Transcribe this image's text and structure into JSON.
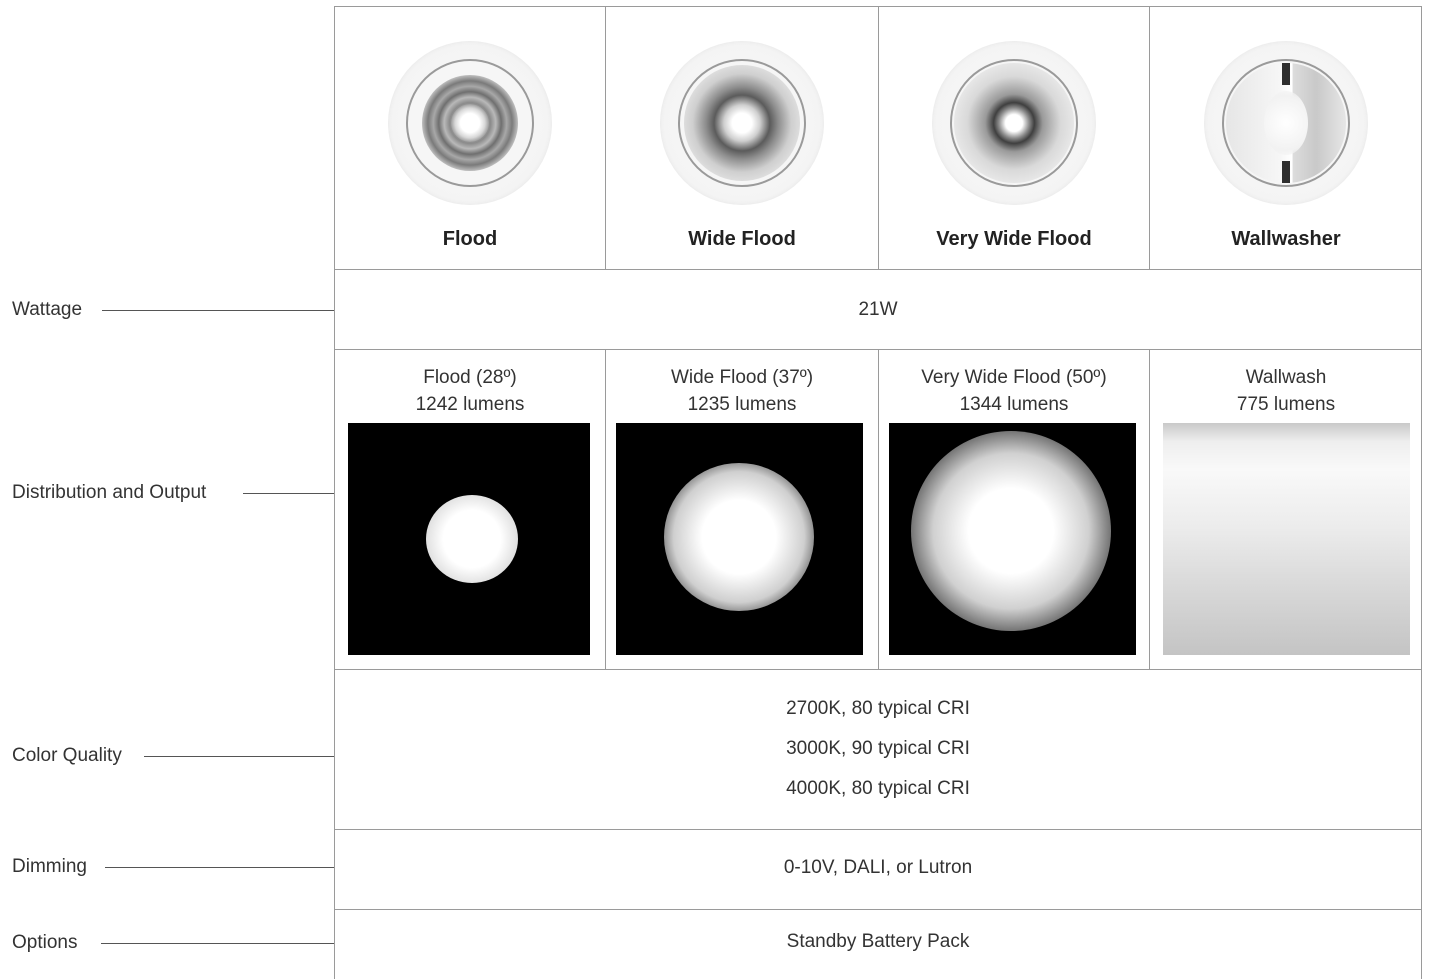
{
  "row_labels": {
    "wattage": "Wattage",
    "distribution": "Distribution and Output",
    "color_quality": "Color Quality",
    "dimming": "Dimming",
    "options": "Options"
  },
  "types": [
    {
      "name": "Flood"
    },
    {
      "name": "Wide Flood"
    },
    {
      "name": "Very Wide Flood"
    },
    {
      "name": "Wallwasher"
    }
  ],
  "wattage": "21W",
  "distributions": [
    {
      "line1": "Flood (28º)",
      "line2": "1242 lumens"
    },
    {
      "line1": "Wide Flood (37º)",
      "line2": "1235 lumens"
    },
    {
      "line1": "Very Wide Flood (50º)",
      "line2": "1344 lumens"
    },
    {
      "line1": "Wallwash",
      "line2": "775 lumens"
    }
  ],
  "color_quality": [
    "2700K, 80 typical CRI",
    "3000K, 90 typical CRI",
    "4000K, 80 typical CRI"
  ],
  "dimming": "0-10V, DALI, or Lutron",
  "options": "Standby Battery Pack",
  "colors": {
    "grid_line": "#9a9a9a",
    "beam_background": "#000000",
    "text": "#333333"
  },
  "icons": [
    "flood-fixture-icon",
    "wide-flood-fixture-icon",
    "very-wide-flood-fixture-icon",
    "wallwasher-fixture-icon"
  ]
}
